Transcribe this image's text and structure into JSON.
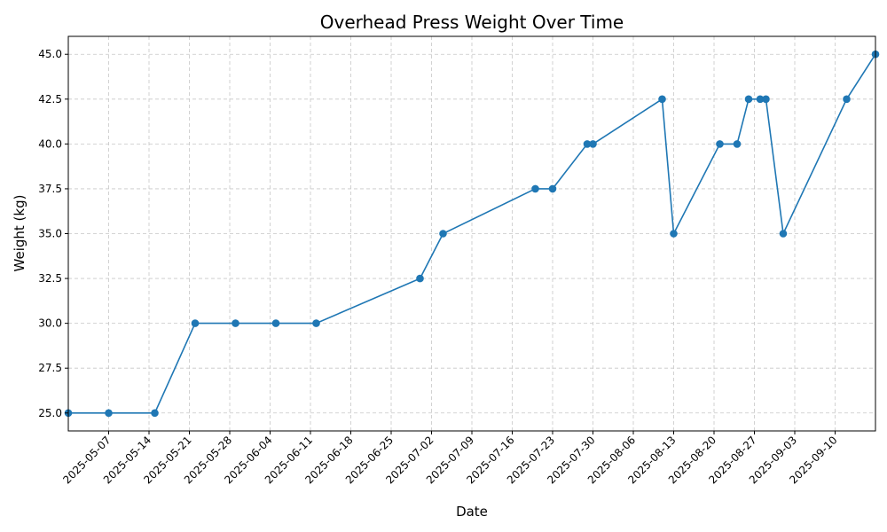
{
  "chart_data": {
    "type": "line",
    "title": "Overhead Press Weight Over Time",
    "xlabel": "Date",
    "ylabel": "Weight (kg)",
    "ylim": [
      24.0,
      46.0
    ],
    "xlim": [
      "2025-04-30",
      "2025-09-17"
    ],
    "grid": true,
    "line_color": "#1f77b4",
    "grid_color": "#c7c7c7",
    "x_ticks": [
      "2025-05-07",
      "2025-05-14",
      "2025-05-21",
      "2025-05-28",
      "2025-06-04",
      "2025-06-11",
      "2025-06-18",
      "2025-06-25",
      "2025-07-02",
      "2025-07-09",
      "2025-07-16",
      "2025-07-23",
      "2025-07-30",
      "2025-08-06",
      "2025-08-13",
      "2025-08-20",
      "2025-08-27",
      "2025-09-03",
      "2025-09-10"
    ],
    "y_ticks": [
      "25.0",
      "27.5",
      "30.0",
      "32.5",
      "35.0",
      "37.5",
      "40.0",
      "42.5",
      "45.0"
    ],
    "series": [
      {
        "x": [
          "2025-04-30",
          "2025-05-07",
          "2025-05-15",
          "2025-05-22",
          "2025-05-29",
          "2025-06-05",
          "2025-06-12",
          "2025-06-30",
          "2025-07-04",
          "2025-07-20",
          "2025-07-23",
          "2025-07-29",
          "2025-07-30",
          "2025-08-11",
          "2025-08-13",
          "2025-08-21",
          "2025-08-24",
          "2025-08-26",
          "2025-08-28",
          "2025-08-29",
          "2025-09-01",
          "2025-09-12",
          "2025-09-17"
        ],
        "y": [
          25.0,
          25.0,
          25.0,
          30.0,
          30.0,
          30.0,
          30.0,
          32.5,
          35.0,
          37.5,
          37.5,
          40.0,
          40.0,
          42.5,
          35.0,
          40.0,
          40.0,
          42.5,
          42.5,
          42.5,
          35.0,
          42.5,
          45.0
        ]
      }
    ]
  }
}
